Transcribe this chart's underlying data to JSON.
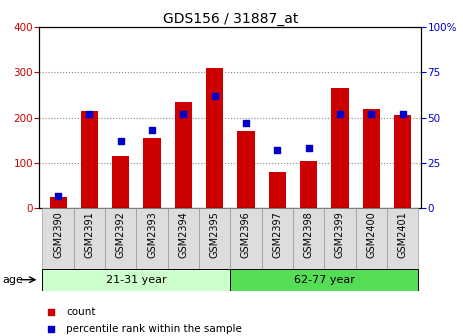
{
  "title": "GDS156 / 31887_at",
  "samples": [
    "GSM2390",
    "GSM2391",
    "GSM2392",
    "GSM2393",
    "GSM2394",
    "GSM2395",
    "GSM2396",
    "GSM2397",
    "GSM2398",
    "GSM2399",
    "GSM2400",
    "GSM2401"
  ],
  "counts": [
    25,
    215,
    115,
    155,
    235,
    310,
    170,
    80,
    105,
    265,
    220,
    205
  ],
  "percentiles": [
    7,
    52,
    37,
    43,
    52,
    62,
    47,
    32,
    33,
    52,
    52,
    52
  ],
  "bar_color": "#cc0000",
  "dot_color": "#0000cc",
  "left_ylim": [
    0,
    400
  ],
  "right_ylim": [
    0,
    100
  ],
  "left_yticks": [
    0,
    100,
    200,
    300,
    400
  ],
  "right_yticks": [
    0,
    25,
    50,
    75,
    100
  ],
  "right_yticklabels": [
    "0",
    "25",
    "50",
    "75",
    "100%"
  ],
  "group1_label": "21-31 year",
  "group2_label": "62-77 year",
  "group1_color": "#ccffcc",
  "group2_color": "#55dd55",
  "age_label": "age",
  "legend_count": "count",
  "legend_pct": "percentile rank within the sample",
  "grid_color": "#888888",
  "background_color": "#ffffff",
  "title_fontsize": 10,
  "tick_fontsize": 7.5,
  "legend_fontsize": 7.5
}
